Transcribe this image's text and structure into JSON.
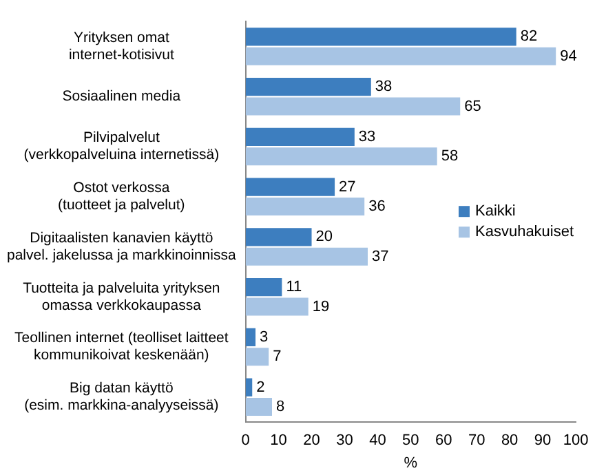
{
  "chart_data": {
    "type": "bar",
    "orientation": "horizontal",
    "xlabel": "%",
    "categories": [
      "Yrityksen omat\ninternet-kotisivut",
      "Sosiaalinen media",
      "Pilvipalvelut\n(verkkopalveluina internetissä)",
      "Ostot verkossa\n(tuotteet ja palvelut)",
      "Digitaalisten kanavien käyttö\npalvel. jakelussa ja markkinoinnissa",
      "Tuotteita ja palveluita yrityksen\nomassa verkkokaupassa",
      "Teollinen internet (teolliset laitteet\nkommunikoivat keskenään)",
      "Big datan käyttö\n(esim. markkina-analyyseissä)"
    ],
    "series": [
      {
        "name": "Kaikki",
        "color": "#3d7ebf",
        "values": [
          82,
          38,
          33,
          27,
          20,
          11,
          3,
          2
        ]
      },
      {
        "name": "Kasvuhakuiset",
        "color": "#a7c4e4",
        "values": [
          94,
          65,
          58,
          36,
          37,
          19,
          7,
          8
        ]
      }
    ],
    "xlim": [
      0,
      100
    ],
    "xticks": [
      0,
      10,
      20,
      30,
      40,
      50,
      60,
      70,
      80,
      90,
      100
    ],
    "grid": false,
    "legend": "right",
    "data_labels": true
  }
}
